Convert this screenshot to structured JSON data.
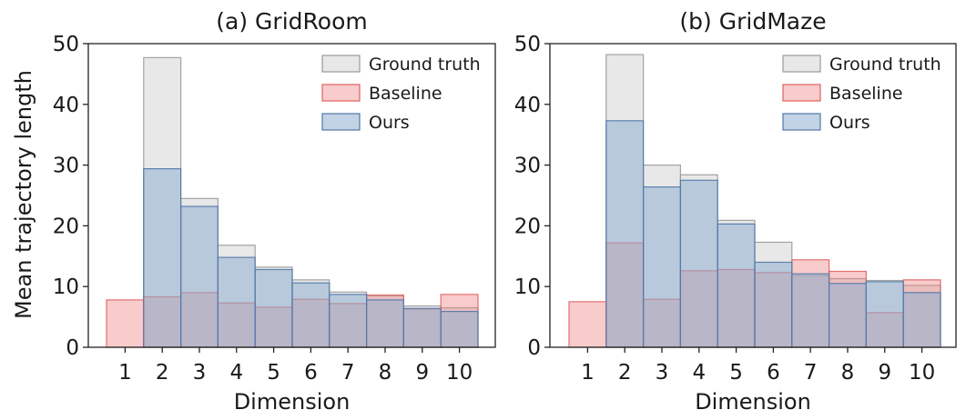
{
  "colors": {
    "ground_truth_fill": "#d9d9d9",
    "ground_truth_edge": "#9a9a9a",
    "baseline_fill": "#f08080",
    "baseline_edge": "#e06060",
    "ours_fill": "#8fafd0",
    "ours_edge": "#4f78a8"
  },
  "ylabel": "Mean trajectory length",
  "chart_data": [
    {
      "type": "bar",
      "title": "(a) GridRoom",
      "xlabel": "Dimension",
      "ylabel": "Mean trajectory length",
      "categories": [
        "1",
        "2",
        "3",
        "4",
        "5",
        "6",
        "7",
        "8",
        "9",
        "10"
      ],
      "ylim": [
        0,
        50
      ],
      "yticks": [
        0,
        10,
        20,
        30,
        40,
        50
      ],
      "legend_position": "top-right",
      "grid": false,
      "series": [
        {
          "name": "Ground truth",
          "values": [
            0,
            47.7,
            24.5,
            16.8,
            13.2,
            11.1,
            9.1,
            8.5,
            6.8,
            6.5
          ]
        },
        {
          "name": "Baseline",
          "values": [
            7.8,
            8.3,
            9.0,
            7.3,
            6.6,
            7.9,
            7.2,
            8.6,
            6.3,
            8.7
          ]
        },
        {
          "name": "Ours",
          "values": [
            0,
            29.4,
            23.2,
            14.8,
            12.8,
            10.6,
            8.7,
            7.8,
            6.4,
            5.9
          ]
        }
      ]
    },
    {
      "type": "bar",
      "title": "(b) GridMaze",
      "xlabel": "Dimension",
      "ylabel": "",
      "categories": [
        "1",
        "2",
        "3",
        "4",
        "5",
        "6",
        "7",
        "8",
        "9",
        "10"
      ],
      "ylim": [
        0,
        50
      ],
      "yticks": [
        0,
        10,
        20,
        30,
        40,
        50
      ],
      "legend_position": "top-right",
      "grid": false,
      "series": [
        {
          "name": "Ground truth",
          "values": [
            0,
            48.2,
            30.0,
            28.4,
            20.9,
            17.3,
            11.8,
            11.3,
            11.0,
            10.2
          ]
        },
        {
          "name": "Baseline",
          "values": [
            7.5,
            17.2,
            7.9,
            12.6,
            12.8,
            12.3,
            14.4,
            12.5,
            5.7,
            11.1
          ]
        },
        {
          "name": "Ours",
          "values": [
            0,
            37.3,
            26.4,
            27.5,
            20.3,
            14.0,
            12.1,
            10.5,
            10.8,
            9.0
          ]
        }
      ]
    }
  ]
}
